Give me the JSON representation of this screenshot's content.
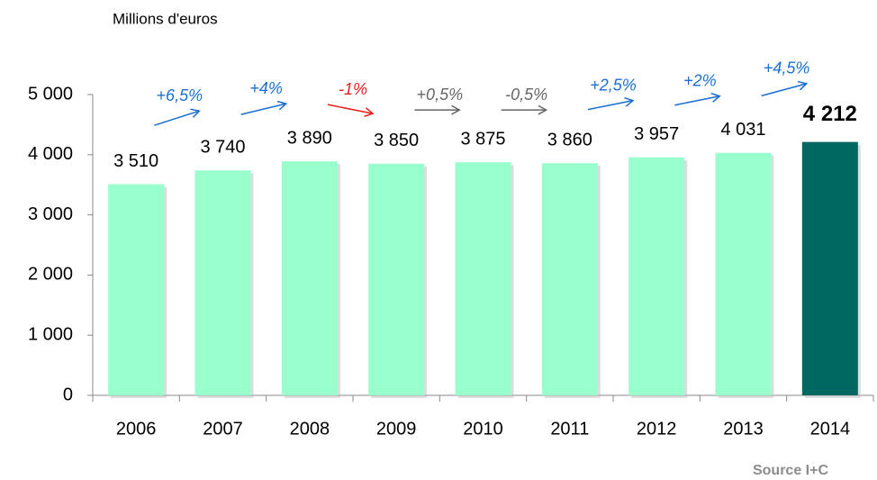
{
  "chart_data": {
    "type": "bar",
    "title": "Millions d'euros",
    "categories": [
      "2006",
      "2007",
      "2008",
      "2009",
      "2010",
      "2011",
      "2012",
      "2013",
      "2014"
    ],
    "values": [
      3510,
      3740,
      3890,
      3850,
      3875,
      3860,
      3957,
      4031,
      4212
    ],
    "value_labels": [
      "3 510",
      "3 740",
      "3 890",
      "3 850",
      "3 875",
      "3 860",
      "3 957",
      "4 031",
      "4 212"
    ],
    "colors": [
      "#99ffcc",
      "#99ffcc",
      "#99ffcc",
      "#99ffcc",
      "#99ffcc",
      "#99ffcc",
      "#99ffcc",
      "#99ffcc",
      "#006861"
    ],
    "ylim": [
      0,
      5000
    ],
    "yticks": [
      0,
      {
        "value": 1000,
        "label": "1 000"
      },
      {
        "value": 2000,
        "label": "2 000"
      },
      {
        "value": 3000,
        "label": "3 000"
      },
      {
        "value": 4000,
        "label": "4 000"
      },
      {
        "value": 5000,
        "label": "5 000"
      }
    ],
    "grid": false,
    "annotations": [
      {
        "text": "+6,5%",
        "color": "#1a6fd1"
      },
      {
        "text": "+4%",
        "color": "#1a6fd1"
      },
      {
        "text": "-1%",
        "color": "#e8201c"
      },
      {
        "text": "+0,5%",
        "color": "#666666"
      },
      {
        "text": "-0,5%",
        "color": "#666666"
      },
      {
        "text": "+2,5%",
        "color": "#1a6fd1"
      },
      {
        "text": "+2%",
        "color": "#1a6fd1"
      },
      {
        "text": "+4,5%",
        "color": "#1a6fd1"
      }
    ],
    "source": "Source I+C"
  }
}
